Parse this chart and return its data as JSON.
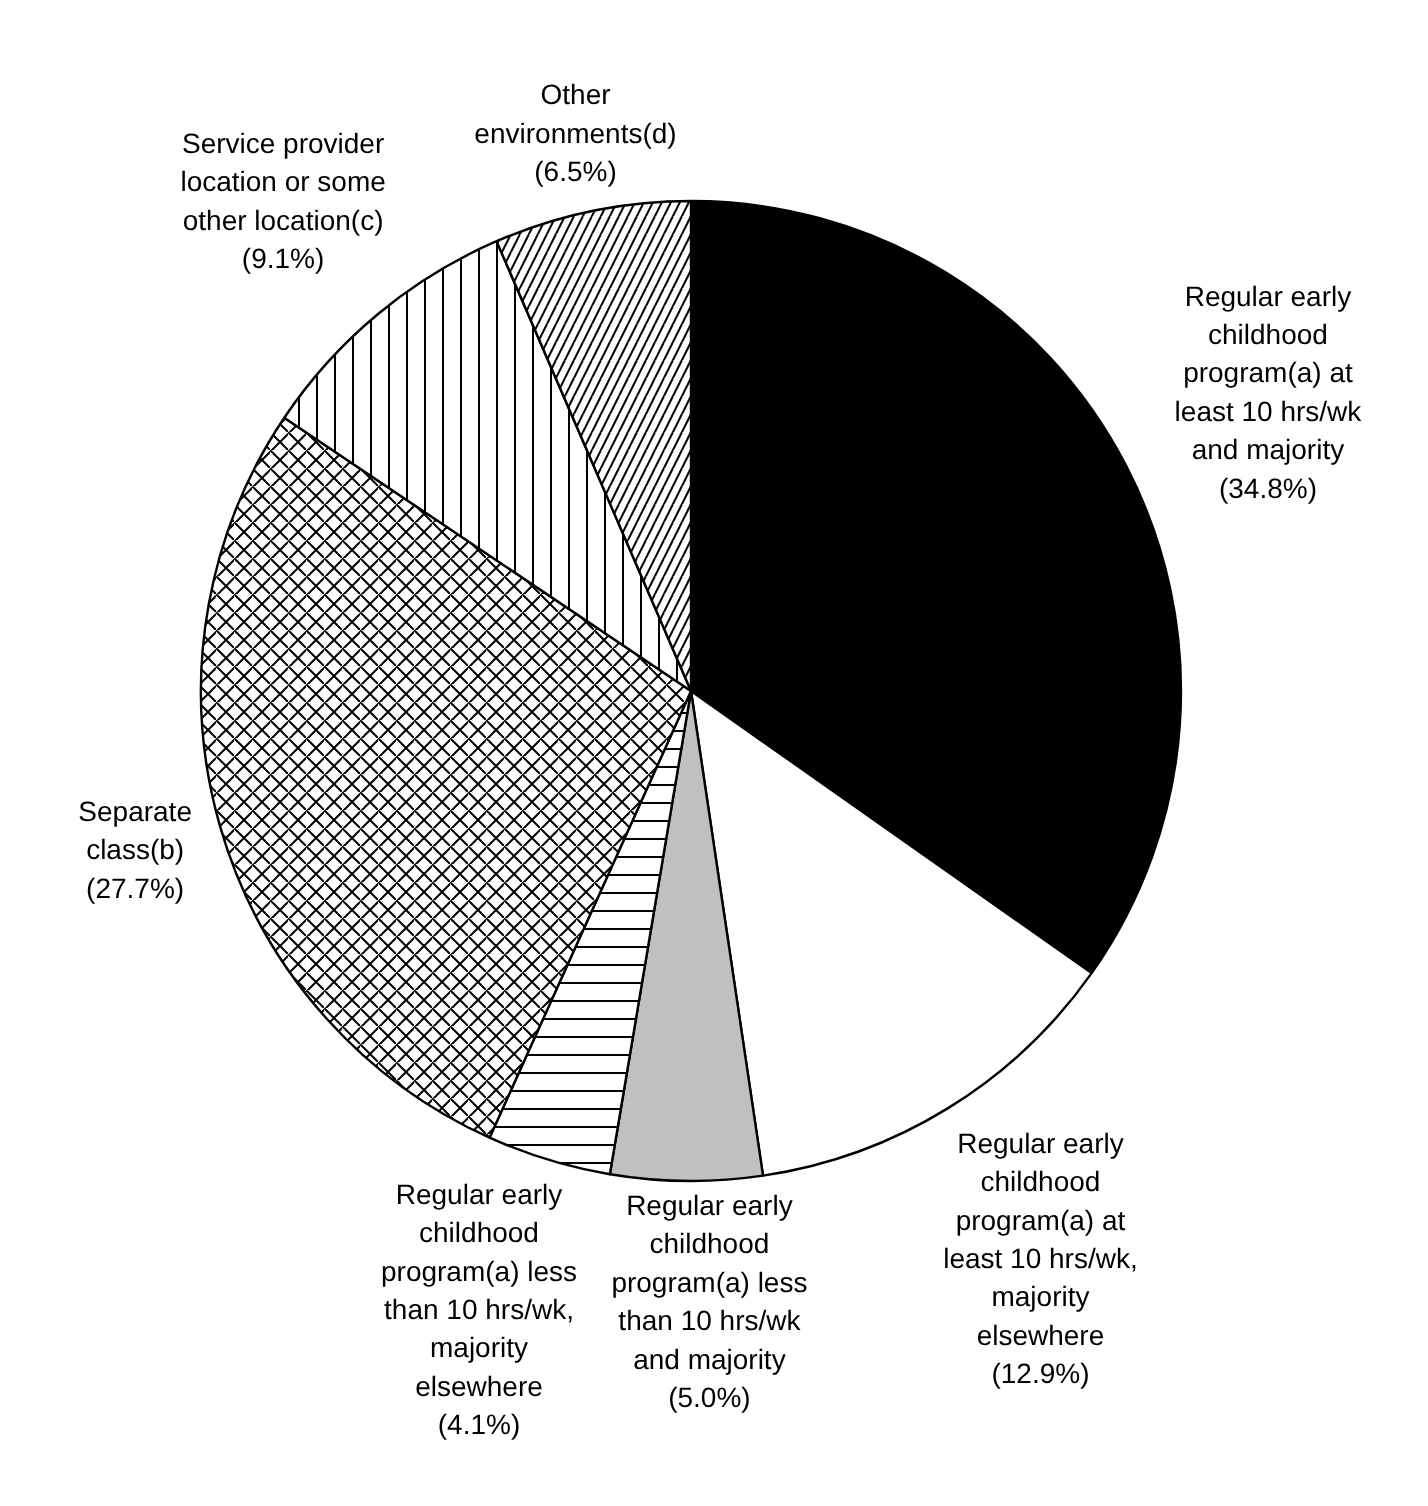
{
  "chart_data": {
    "type": "pie",
    "categories": [
      "Regular early\nchildhood\nprogram(a) at\nleast 10 hrs/wk\nand majority",
      "Regular early\nchildhood\nprogram(a) at\nleast 10 hrs/wk,\nmajority\nelsewhere",
      "Regular early\nchildhood\nprogram(a) less\nthan 10 hrs/wk\nand majority",
      "Regular early\nchildhood\nprogram(a) less\nthan 10 hrs/wk,\nmajority\nelsewhere",
      "Separate\nclass(b)",
      "Service provider\nlocation or some\nother location(c)",
      "Other\nenvironments(d)"
    ],
    "values": [
      34.8,
      12.9,
      5.0,
      4.1,
      27.7,
      9.1,
      6.5
    ],
    "value_labels": [
      "(34.8%)",
      "(12.9%)",
      "(5.0%)",
      "(4.1%)",
      "(27.7%)",
      "(9.1%)",
      "(6.5%)"
    ],
    "colors": [
      "#000000",
      "#ffffff",
      "#c0c0c0",
      "#ffffff",
      "#ffffff",
      "#ffffff",
      "#ffffff"
    ]
  }
}
